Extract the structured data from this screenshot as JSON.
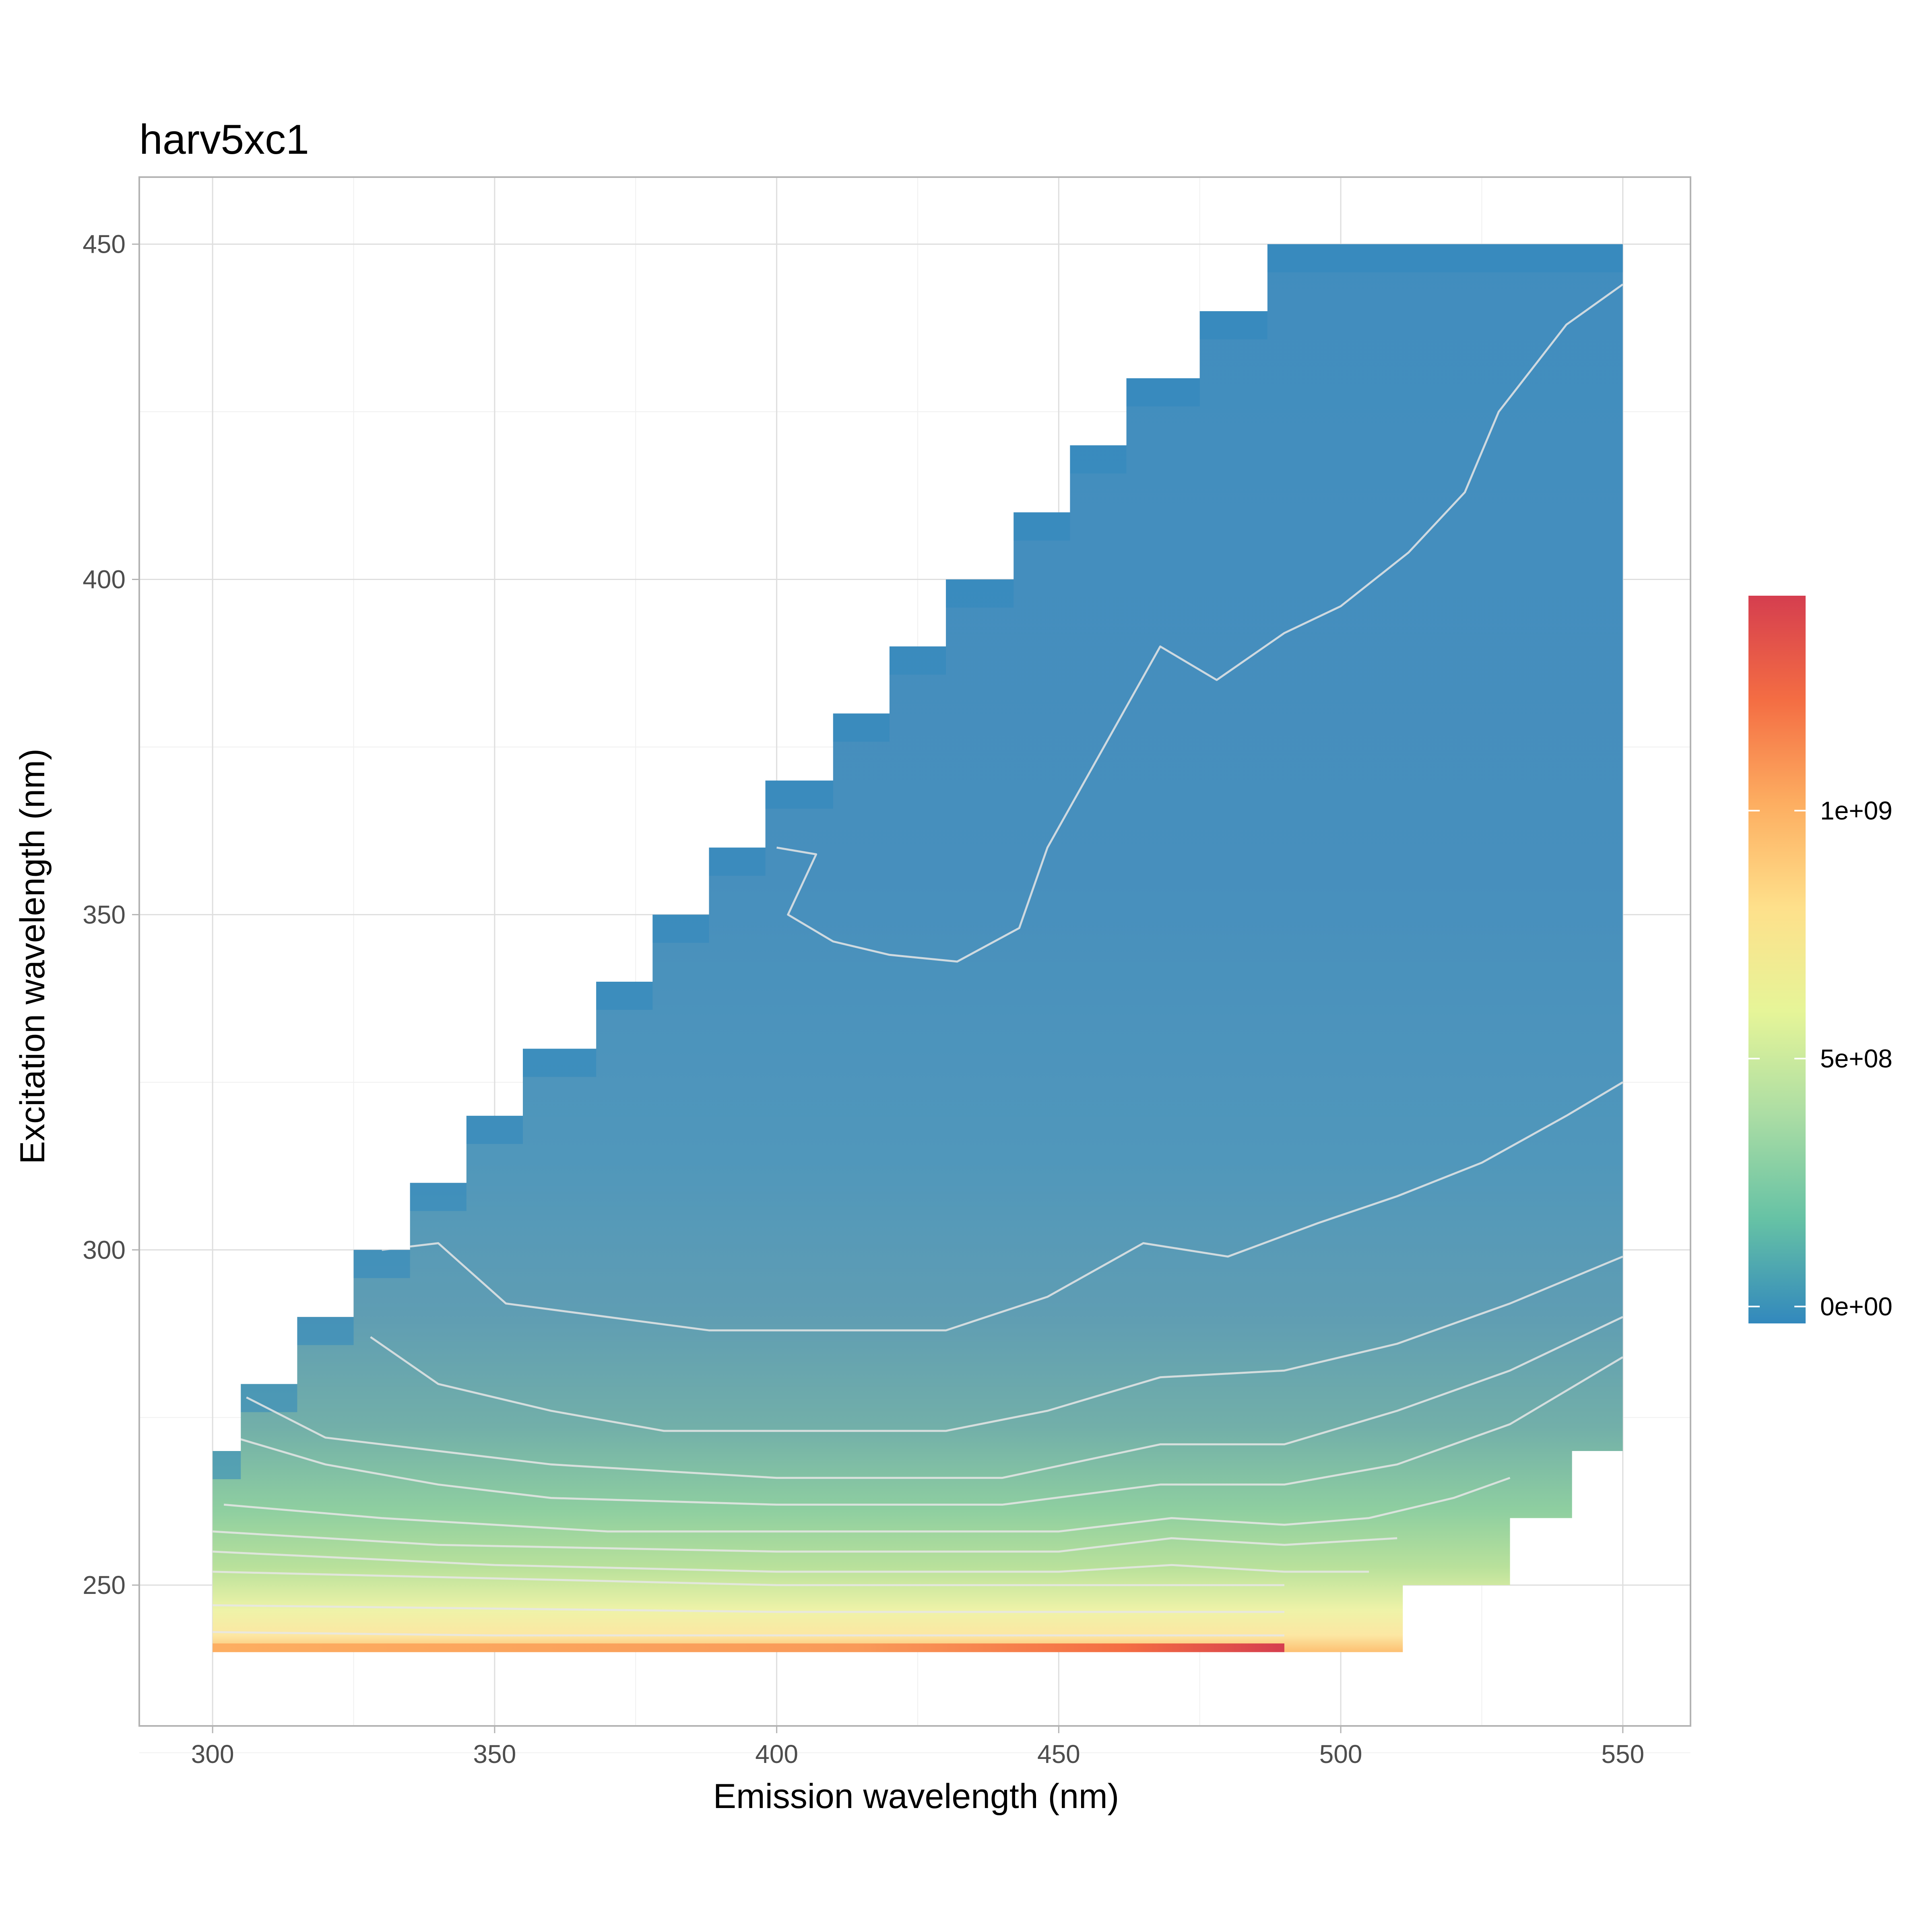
{
  "chart_data": {
    "type": "heatmap",
    "title": "harv5xc1",
    "xlabel": "Emission wavelength (nm)",
    "ylabel": "Excitation wavelength (nm)",
    "xlim": [
      287,
      562
    ],
    "ylim": [
      229,
      460
    ],
    "x_ticks": [
      300,
      350,
      400,
      450,
      500,
      550
    ],
    "y_ticks": [
      250,
      300,
      350,
      400,
      450
    ],
    "x_tick_labels": [
      "300",
      "350",
      "400",
      "450",
      "500",
      "550"
    ],
    "y_tick_labels": [
      "250",
      "300",
      "350",
      "400",
      "450"
    ],
    "grid": true,
    "legend_position": "right",
    "color_scale": {
      "type": "Spectral",
      "min": 0,
      "max": 1400000000,
      "breaks": [
        0,
        500000000,
        1000000000
      ],
      "labels": [
        "0e+00",
        "5e+08",
        "1e+09"
      ],
      "colors": [
        "#3288bd",
        "#66c2a5",
        "#abdda4",
        "#e6f598",
        "#fee08b",
        "#fdae61",
        "#f46d43",
        "#d53e4f"
      ]
    },
    "data_region_upper_edge": [
      [
        300,
        270
      ],
      [
        305,
        280
      ],
      [
        315,
        290
      ],
      [
        325,
        300
      ],
      [
        335,
        310
      ],
      [
        345,
        320
      ],
      [
        355,
        330
      ],
      [
        368,
        340
      ],
      [
        378,
        350
      ],
      [
        388,
        360
      ],
      [
        398,
        370
      ],
      [
        410,
        380
      ],
      [
        420,
        390
      ],
      [
        430,
        400
      ],
      [
        442,
        410
      ],
      [
        452,
        420
      ],
      [
        462,
        430
      ],
      [
        475,
        440
      ],
      [
        487,
        450
      ],
      [
        550,
        450
      ]
    ],
    "data_region_bottom": 240,
    "data_region_right_lower_edge": [
      [
        490,
        240
      ],
      [
        511,
        240
      ],
      [
        511,
        250
      ],
      [
        530,
        250
      ],
      [
        530,
        260
      ],
      [
        541,
        260
      ],
      [
        541,
        270
      ],
      [
        550,
        270
      ]
    ],
    "contour_levels": [
      {
        "level": 10000000,
        "points": [
          [
            400,
            360
          ],
          [
            407,
            359
          ],
          [
            402,
            350
          ],
          [
            410,
            346
          ],
          [
            420,
            344
          ],
          [
            432,
            343
          ],
          [
            443,
            348
          ],
          [
            448,
            360
          ],
          [
            458,
            375
          ],
          [
            468,
            390
          ],
          [
            478,
            385
          ],
          [
            490,
            392
          ],
          [
            500,
            396
          ],
          [
            512,
            404
          ],
          [
            522,
            413
          ],
          [
            528,
            425
          ],
          [
            540,
            438
          ],
          [
            550,
            444
          ]
        ]
      },
      {
        "level": 50000000,
        "points": [
          [
            330,
            300
          ],
          [
            340,
            301
          ],
          [
            352,
            292
          ],
          [
            370,
            290
          ],
          [
            388,
            288
          ],
          [
            410,
            288
          ],
          [
            430,
            288
          ],
          [
            448,
            293
          ],
          [
            465,
            301
          ],
          [
            480,
            299
          ],
          [
            496,
            304
          ],
          [
            510,
            308
          ],
          [
            525,
            313
          ],
          [
            540,
            320
          ],
          [
            550,
            325
          ]
        ]
      },
      {
        "level": 100000000,
        "points": [
          [
            328,
            287
          ],
          [
            340,
            280
          ],
          [
            360,
            276
          ],
          [
            380,
            273
          ],
          [
            400,
            273
          ],
          [
            430,
            273
          ],
          [
            448,
            276
          ],
          [
            468,
            281
          ],
          [
            490,
            282
          ],
          [
            510,
            286
          ],
          [
            530,
            292
          ],
          [
            550,
            299
          ]
        ]
      },
      {
        "level": 150000000,
        "points": [
          [
            306,
            278
          ],
          [
            320,
            272
          ],
          [
            340,
            270
          ],
          [
            360,
            268
          ],
          [
            400,
            266
          ],
          [
            440,
            266
          ],
          [
            468,
            271
          ],
          [
            490,
            271
          ],
          [
            510,
            276
          ],
          [
            530,
            282
          ],
          [
            550,
            290
          ]
        ]
      },
      {
        "level": 200000000,
        "points": [
          [
            304,
            272
          ],
          [
            320,
            268
          ],
          [
            340,
            265
          ],
          [
            360,
            263
          ],
          [
            400,
            262
          ],
          [
            440,
            262
          ],
          [
            468,
            265
          ],
          [
            490,
            265
          ],
          [
            510,
            268
          ],
          [
            530,
            274
          ],
          [
            550,
            284
          ]
        ]
      },
      {
        "level": 300000000,
        "points": [
          [
            302,
            262
          ],
          [
            330,
            260
          ],
          [
            370,
            258
          ],
          [
            410,
            258
          ],
          [
            450,
            258
          ],
          [
            470,
            260
          ],
          [
            490,
            259
          ],
          [
            505,
            260
          ],
          [
            520,
            263
          ],
          [
            530,
            266
          ]
        ]
      },
      {
        "level": 400000000,
        "points": [
          [
            300,
            258
          ],
          [
            340,
            256
          ],
          [
            400,
            255
          ],
          [
            450,
            255
          ],
          [
            470,
            257
          ],
          [
            490,
            256
          ],
          [
            510,
            257
          ]
        ]
      },
      {
        "level": 500000000,
        "points": [
          [
            300,
            255
          ],
          [
            350,
            253
          ],
          [
            400,
            252
          ],
          [
            450,
            252
          ],
          [
            470,
            253
          ],
          [
            490,
            252
          ],
          [
            505,
            252
          ]
        ]
      },
      {
        "level": 600000000,
        "points": [
          [
            300,
            252
          ],
          [
            350,
            251
          ],
          [
            400,
            250
          ],
          [
            450,
            250
          ],
          [
            490,
            250
          ]
        ]
      },
      {
        "level": 800000000,
        "points": [
          [
            300,
            247
          ],
          [
            350,
            246.5
          ],
          [
            400,
            246
          ],
          [
            450,
            246
          ],
          [
            490,
            246
          ]
        ]
      },
      {
        "level": 1000000000,
        "points": [
          [
            300,
            243
          ],
          [
            350,
            242.5
          ],
          [
            400,
            242.5
          ],
          [
            450,
            242.5
          ],
          [
            490,
            242.5
          ]
        ]
      }
    ]
  }
}
